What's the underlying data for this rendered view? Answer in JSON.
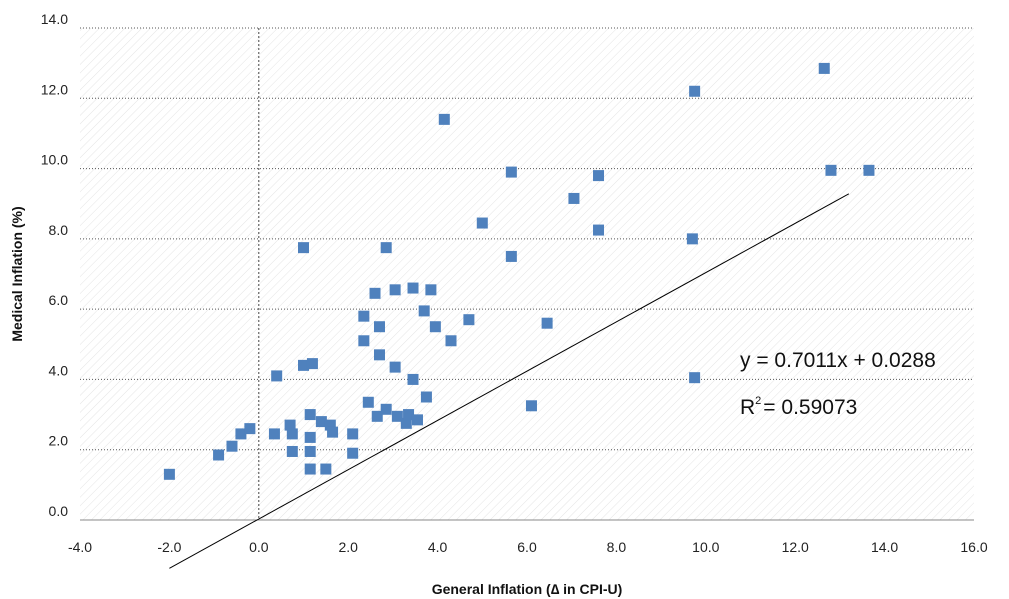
{
  "chart_data": {
    "type": "scatter",
    "xlabel": "General Inflation (∆ in CPI-U)",
    "ylabel": "Medical Inflation (%)",
    "xlim": [
      -4,
      16
    ],
    "ylim": [
      0,
      14
    ],
    "x_ticks": [
      "-4.0",
      "-2.0",
      "0.0",
      "2.0",
      "4.0",
      "6.0",
      "8.0",
      "10.0",
      "12.0",
      "14.0",
      "16.0"
    ],
    "y_ticks": [
      "0.0",
      "2.0",
      "4.0",
      "6.0",
      "8.0",
      "10.0",
      "12.0",
      "14.0"
    ],
    "grid": "horizontal dotted",
    "marker_color": "#4f81bd",
    "trendline": {
      "slope": 0.7011,
      "intercept": 0.0288,
      "x_range": [
        -2.0,
        13.2
      ]
    },
    "equation_text": "y = 0.7011x + 0.0288",
    "r2_label": "R",
    "r2_exponent": "2",
    "r2_value_text": "= 0.59073",
    "points": [
      [
        -2.0,
        1.3
      ],
      [
        -0.9,
        1.85
      ],
      [
        -0.6,
        2.1
      ],
      [
        -0.4,
        2.45
      ],
      [
        -0.2,
        2.6
      ],
      [
        0.4,
        4.1
      ],
      [
        0.35,
        2.45
      ],
      [
        0.7,
        2.7
      ],
      [
        0.75,
        2.45
      ],
      [
        0.75,
        1.95
      ],
      [
        1.0,
        7.75
      ],
      [
        1.0,
        4.4
      ],
      [
        1.2,
        4.45
      ],
      [
        1.15,
        3.0
      ],
      [
        1.15,
        2.35
      ],
      [
        1.15,
        1.95
      ],
      [
        1.15,
        1.45
      ],
      [
        1.4,
        2.8
      ],
      [
        1.5,
        1.45
      ],
      [
        1.6,
        2.7
      ],
      [
        1.65,
        2.5
      ],
      [
        2.1,
        2.45
      ],
      [
        2.1,
        1.9
      ],
      [
        2.35,
        5.8
      ],
      [
        2.35,
        5.1
      ],
      [
        2.45,
        3.35
      ],
      [
        2.6,
        6.45
      ],
      [
        2.65,
        2.95
      ],
      [
        2.7,
        5.5
      ],
      [
        2.7,
        4.7
      ],
      [
        2.85,
        7.75
      ],
      [
        2.85,
        3.15
      ],
      [
        3.05,
        6.55
      ],
      [
        3.05,
        4.35
      ],
      [
        3.1,
        2.95
      ],
      [
        3.3,
        2.75
      ],
      [
        3.35,
        3.0
      ],
      [
        3.45,
        6.6
      ],
      [
        3.45,
        4.0
      ],
      [
        3.55,
        2.85
      ],
      [
        3.7,
        5.95
      ],
      [
        3.75,
        3.5
      ],
      [
        3.85,
        6.55
      ],
      [
        3.95,
        5.5
      ],
      [
        4.15,
        11.4
      ],
      [
        4.3,
        5.1
      ],
      [
        4.7,
        5.7
      ],
      [
        5.0,
        8.45
      ],
      [
        5.65,
        9.9
      ],
      [
        5.65,
        7.5
      ],
      [
        6.1,
        3.25
      ],
      [
        6.45,
        5.6
      ],
      [
        7.05,
        9.15
      ],
      [
        7.6,
        9.8
      ],
      [
        7.6,
        8.25
      ],
      [
        9.75,
        12.2
      ],
      [
        9.7,
        8.0
      ],
      [
        9.75,
        4.05
      ],
      [
        12.65,
        12.85
      ],
      [
        12.8,
        9.95
      ],
      [
        13.65,
        9.95
      ]
    ]
  }
}
